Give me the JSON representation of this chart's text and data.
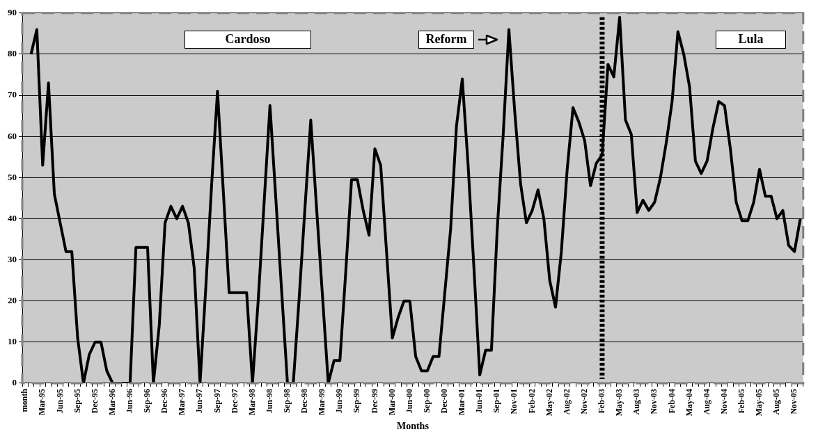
{
  "chart_data": {
    "type": "line",
    "xlabel": "Months",
    "categories": [
      "month",
      null,
      null,
      "Mar-95",
      null,
      null,
      "Jun-95",
      null,
      null,
      "Sep-95",
      null,
      null,
      "Dec-95",
      null,
      null,
      "Mar-96",
      null,
      null,
      "Jun-96",
      null,
      null,
      "Sep-96",
      null,
      null,
      "Dec-96",
      null,
      null,
      "Mar-97",
      null,
      null,
      "Jun-97",
      null,
      null,
      "Sep-97",
      null,
      null,
      "Dec-97",
      null,
      null,
      "Mar-98",
      null,
      null,
      "Jun-98",
      null,
      null,
      "Sep-98",
      null,
      null,
      "Dec-98",
      null,
      null,
      "Mar-99",
      null,
      null,
      "Jun-99",
      null,
      null,
      "Sep-99",
      null,
      null,
      "Dec-99",
      null,
      null,
      "Mar-00",
      null,
      null,
      "Jun-00",
      null,
      null,
      "Sep-00",
      null,
      null,
      "Dec-00",
      null,
      null,
      "Mar-01",
      null,
      null,
      "Jun-01",
      null,
      null,
      "Sep-01",
      null,
      null,
      "Nov-01",
      null,
      null,
      "Feb-02",
      null,
      null,
      "May-02",
      null,
      null,
      "Aug-02",
      null,
      null,
      "Nov-02",
      null,
      null,
      "Feb-03",
      null,
      null,
      "May-03",
      null,
      null,
      "Aug-03",
      null,
      null,
      "Nov-03",
      null,
      null,
      "Feb-04",
      null,
      null,
      "May-04",
      null,
      null,
      "Aug-04",
      null,
      null,
      "Nov-04",
      null,
      null,
      "Feb-05",
      null,
      null,
      "May-05",
      null,
      null,
      "Aug-05",
      null,
      null,
      "Nov-05",
      null
    ],
    "series": [
      {
        "color": "#000000",
        "values": [
          null,
          80,
          86,
          53,
          73,
          46,
          39,
          32,
          32,
          11,
          0,
          7,
          10,
          10,
          3,
          0,
          0,
          0,
          0,
          33,
          33,
          33,
          0,
          14,
          39,
          43,
          40,
          43,
          39,
          28,
          0,
          23.5,
          48.5,
          71,
          46.5,
          22,
          22,
          22,
          22,
          0,
          20.5,
          44,
          67.5,
          45,
          22.5,
          0,
          0,
          20.5,
          42.5,
          64,
          42.5,
          21.5,
          0,
          5.5,
          5.5,
          27,
          49.5,
          49.5,
          42,
          36,
          57,
          53,
          32,
          11,
          16,
          20,
          20,
          6.5,
          3,
          3,
          6.5,
          6.5,
          22,
          37.5,
          62.5,
          74,
          53,
          28,
          2,
          8,
          8,
          37.5,
          60,
          86,
          66,
          48.5,
          39,
          42,
          47,
          40,
          25,
          18.5,
          32,
          52,
          67,
          63.5,
          59,
          48,
          53.5,
          55.5,
          77.5,
          74.5,
          89,
          64,
          60.5,
          41.5,
          44.5,
          42,
          44,
          50,
          58.5,
          68.5,
          85.5,
          80,
          72,
          54,
          51,
          54,
          62,
          68.5,
          67.5,
          57,
          44,
          39.5,
          39.5,
          44,
          52,
          45.5,
          45.5,
          40,
          42,
          33.5,
          32,
          40
        ]
      }
    ],
    "ylim": [
      0,
      90
    ],
    "yticks": [
      0,
      10,
      20,
      30,
      40,
      50,
      60,
      70,
      80,
      90
    ],
    "grid": "y",
    "legend": false,
    "ref_lines": [
      {
        "axis": "x",
        "value": "Feb-03",
        "color": "#000000",
        "line_style": "dotted"
      }
    ],
    "annotations": [
      "Cardoso",
      "Reform",
      "Lula"
    ]
  }
}
